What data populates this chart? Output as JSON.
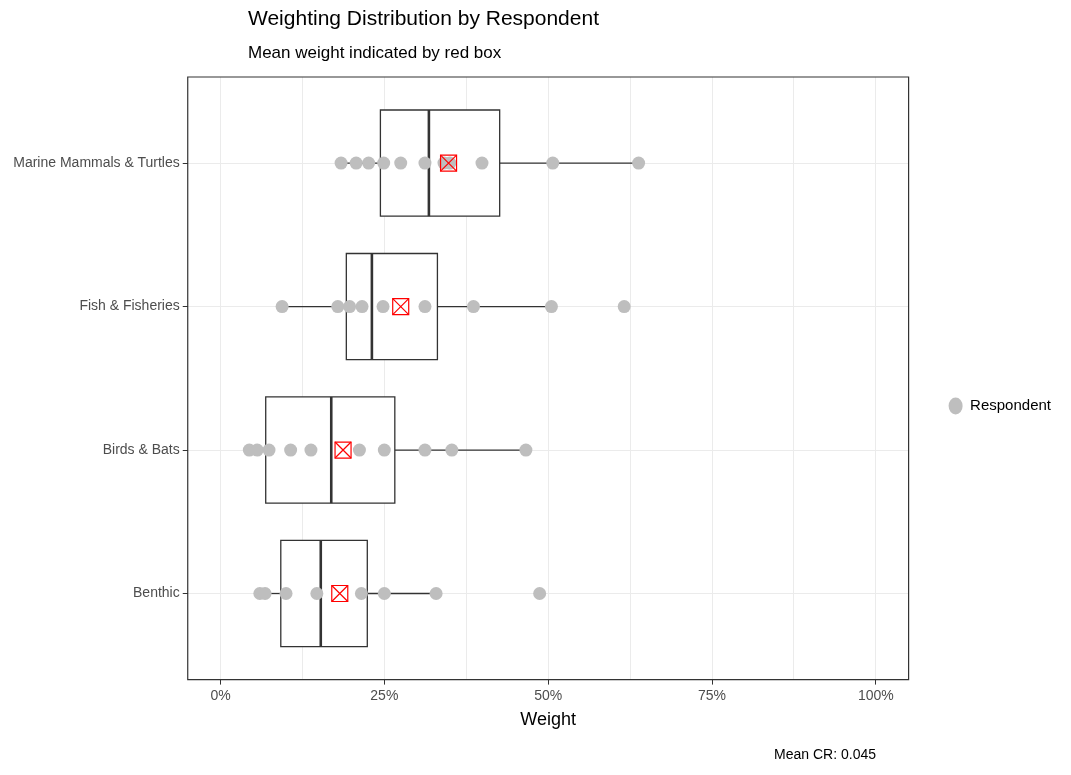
{
  "chart_data": {
    "type": "box",
    "orientation": "horizontal",
    "title": "Weighting Distribution by Respondent",
    "subtitle": "Mean weight indicated by red box",
    "xlabel": "Weight",
    "categories": [
      "Marine Mammals & Turtles",
      "Fish & Fisheries",
      "Birds & Bats",
      "Benthic"
    ],
    "boxes": [
      {
        "low": 18.4,
        "q1": 24.4,
        "median": 31.8,
        "q3": 42.6,
        "high": 63.8,
        "mean": 34.8
      },
      {
        "low": 9.4,
        "q1": 19.2,
        "median": 23.1,
        "q3": 33.1,
        "high": 50.3,
        "mean": 27.5
      },
      {
        "low": 4.4,
        "q1": 6.9,
        "median": 16.9,
        "q3": 26.6,
        "high": 46.6,
        "mean": 18.7
      },
      {
        "low": 6.0,
        "q1": 9.2,
        "median": 15.3,
        "q3": 22.4,
        "high": 32.9,
        "mean": 18.2
      }
    ],
    "series": [
      {
        "name": "Respondent",
        "type": "scatter",
        "marker": "circle",
        "color": "#bebebe",
        "x": [
          "Marine Mammals & Turtles",
          "Marine Mammals & Turtles",
          "Marine Mammals & Turtles",
          "Marine Mammals & Turtles",
          "Marine Mammals & Turtles",
          "Marine Mammals & Turtles",
          "Marine Mammals & Turtles",
          "Marine Mammals & Turtles",
          "Marine Mammals & Turtles",
          "Marine Mammals & Turtles",
          "Marine Mammals & Turtles",
          "Fish & Fisheries",
          "Fish & Fisheries",
          "Fish & Fisheries",
          "Fish & Fisheries",
          "Fish & Fisheries",
          "Fish & Fisheries",
          "Fish & Fisheries",
          "Fish & Fisheries",
          "Fish & Fisheries",
          "Birds & Bats",
          "Birds & Bats",
          "Birds & Bats",
          "Birds & Bats",
          "Birds & Bats",
          "Birds & Bats",
          "Birds & Bats",
          "Birds & Bats",
          "Birds & Bats",
          "Birds & Bats",
          "Benthic",
          "Benthic",
          "Benthic",
          "Benthic",
          "Benthic",
          "Benthic",
          "Benthic",
          "Benthic"
        ],
        "values": [
          18.4,
          20.7,
          22.6,
          24.9,
          27.5,
          31.2,
          34.1,
          35.0,
          39.9,
          50.7,
          63.8,
          9.4,
          17.9,
          19.7,
          21.6,
          24.8,
          31.2,
          38.6,
          50.5,
          61.6,
          4.4,
          5.6,
          7.4,
          10.7,
          13.8,
          21.2,
          25.0,
          31.2,
          35.3,
          46.6,
          6.0,
          6.8,
          10.0,
          14.7,
          21.5,
          25.0,
          32.9,
          48.7
        ]
      }
    ],
    "xlim": [
      -5,
      105
    ],
    "xticks": [
      {
        "value": 0,
        "label": "0%"
      },
      {
        "value": 12.5,
        "label": null
      },
      {
        "value": 25,
        "label": "25%"
      },
      {
        "value": 37.5,
        "label": null
      },
      {
        "value": 50,
        "label": "50%"
      },
      {
        "value": 62.5,
        "label": null
      },
      {
        "value": 75,
        "label": "75%"
      },
      {
        "value": 87.5,
        "label": null
      },
      {
        "value": 100,
        "label": "100%"
      }
    ],
    "grid": true,
    "legend": "right",
    "annotations": [
      "Mean CR: 0.045"
    ]
  }
}
